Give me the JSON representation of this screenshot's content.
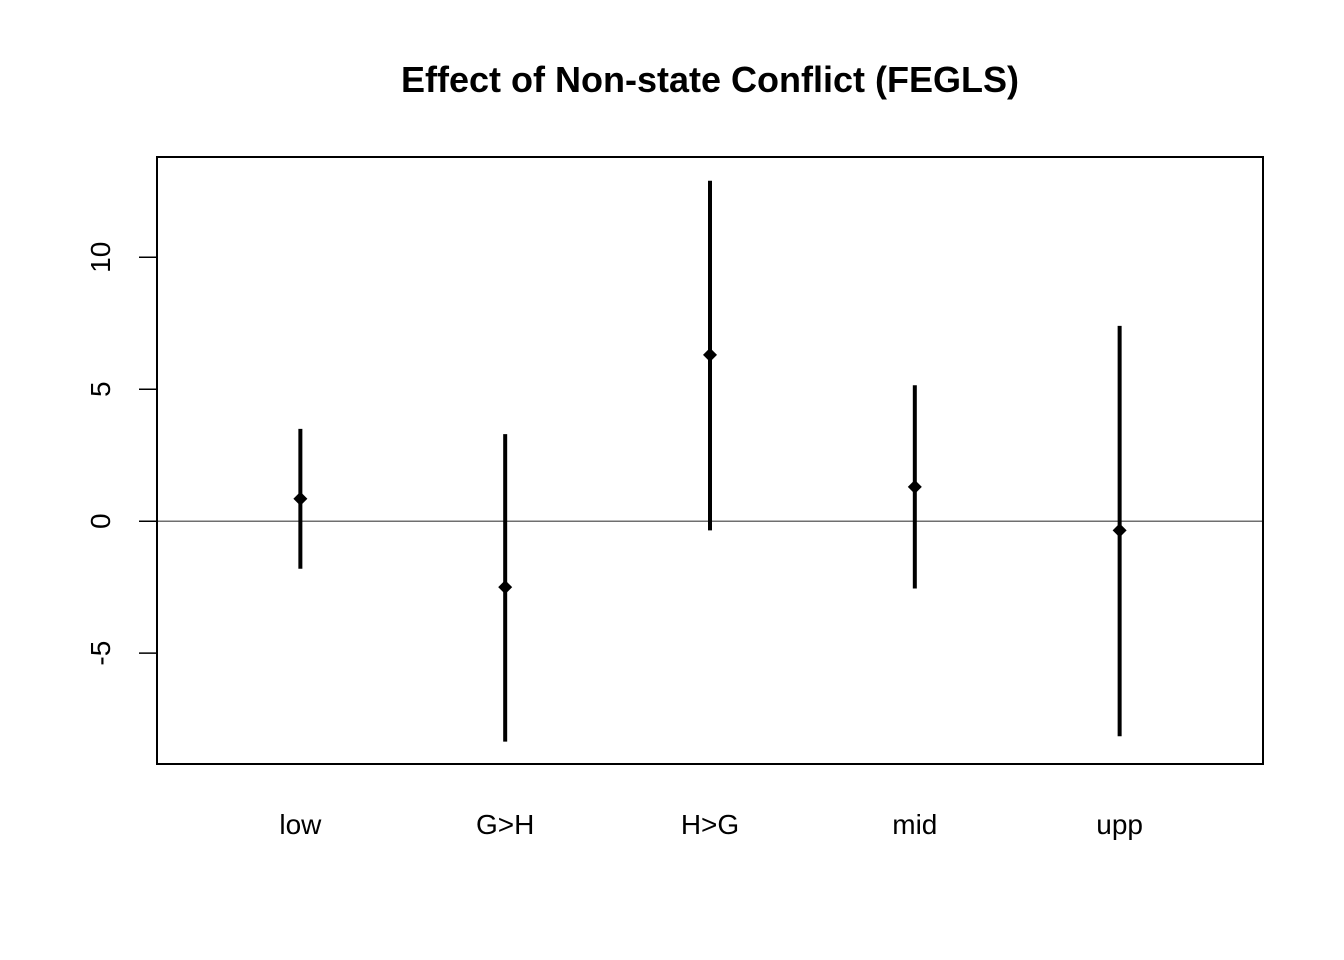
{
  "chart_data": {
    "type": "errorbar",
    "title": "Effect of Non-state Conflict (FEGLS)",
    "xlabel": "",
    "ylabel": "",
    "categories": [
      "low",
      "G>H",
      "H>G",
      "mid",
      "upp"
    ],
    "estimate": [
      0.85,
      -2.5,
      6.3,
      1.3,
      -0.35
    ],
    "lower": [
      -1.8,
      -8.35,
      -0.35,
      -2.55,
      -8.15
    ],
    "upper": [
      3.5,
      3.3,
      12.9,
      5.15,
      7.4
    ],
    "ylim": [
      -9.2,
      13.8
    ],
    "yticks": [
      -5,
      0,
      5,
      10
    ],
    "reference_line": 0,
    "grid": false,
    "legend": "none"
  }
}
